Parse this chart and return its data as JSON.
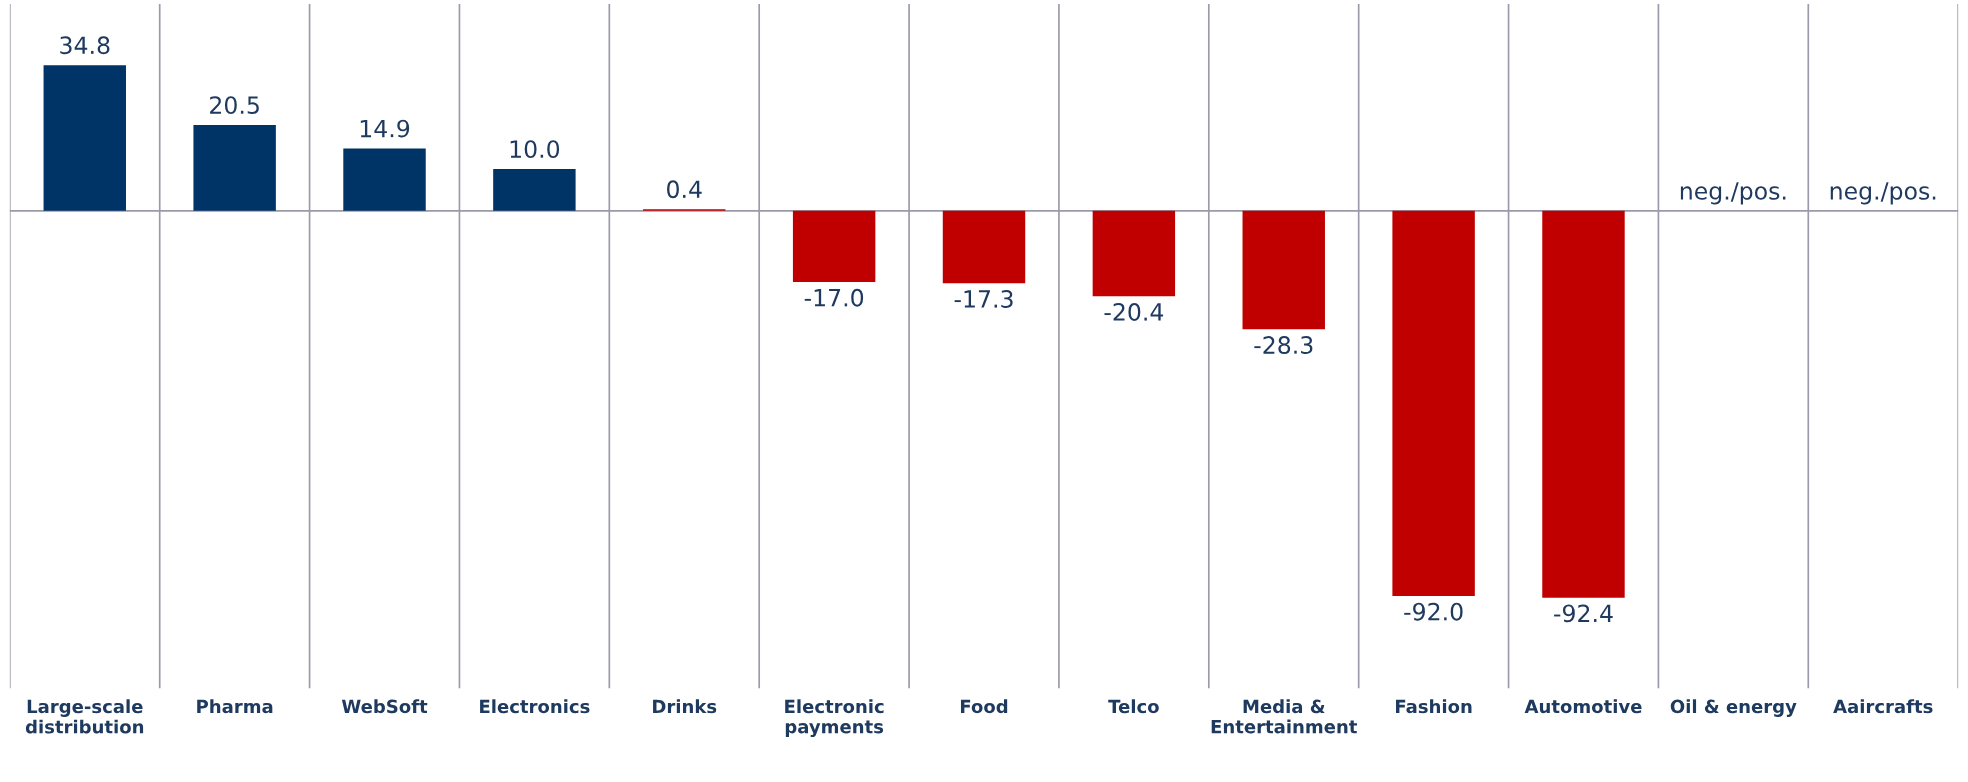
{
  "chart_data": {
    "type": "bar",
    "categories": [
      "Large-scale\ndistribution",
      "Pharma",
      "WebSoft",
      "Electronics",
      "Drinks",
      "Electronic\npayments",
      "Food",
      "Telco",
      "Media &\nEntertainment",
      "Fashion",
      "Automotive",
      "Oil & energy",
      "Aaircrafts"
    ],
    "values": [
      34.8,
      20.5,
      14.9,
      10.0,
      0.4,
      -17.0,
      -17.3,
      -20.4,
      -28.3,
      -92.0,
      -92.4,
      null,
      null
    ],
    "value_labels": [
      "34.8",
      "20.5",
      "14.9",
      "10.0",
      "0.4",
      "-17.0",
      "-17.3",
      "-20.4",
      "-28.3",
      "-92.0",
      "-92.4",
      "neg./pos.",
      "neg./pos."
    ],
    "colors": [
      "#003366",
      "#003366",
      "#003366",
      "#003366",
      "#c00000",
      "#c00000",
      "#c00000",
      "#c00000",
      "#c00000",
      "#c00000",
      "#c00000",
      "#c00000",
      "#c00000"
    ],
    "grid": "x"
  }
}
